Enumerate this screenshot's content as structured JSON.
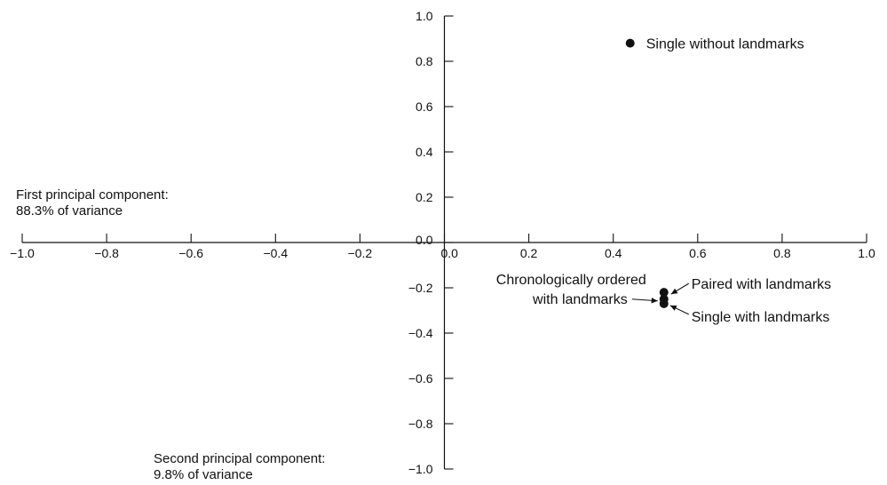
{
  "chart_data": {
    "type": "scatter",
    "title": "",
    "x_axis": {
      "title_lines": [
        "First principal component:",
        "88.3% of variance"
      ],
      "range": [
        -1.0,
        1.0
      ],
      "ticks": [
        -1.0,
        -0.8,
        -0.6,
        -0.4,
        -0.2,
        0.0,
        0.2,
        0.4,
        0.6,
        0.8,
        1.0
      ],
      "tick_labels": [
        "−1.0",
        "−0.8",
        "−0.6",
        "−0.4",
        "−0.2",
        "0.0",
        "0.2",
        "0.4",
        "0.6",
        "0.8",
        "1.0"
      ]
    },
    "y_axis": {
      "title_lines": [
        "Second principal component:",
        "9.8% of variance"
      ],
      "range": [
        -1.0,
        1.0
      ],
      "ticks": [
        1.0,
        0.8,
        0.6,
        0.4,
        0.2,
        0.0,
        -0.2,
        -0.4,
        -0.6,
        -0.8,
        -1.0
      ],
      "tick_labels": [
        "1.0",
        "0.8",
        "0.6",
        "0.4",
        "0.2",
        "0.0",
        "−0.2",
        "−0.4",
        "−0.6",
        "−0.8",
        "−1.0"
      ]
    },
    "points": [
      {
        "label_lines": [
          "Single without landmarks"
        ],
        "x": 0.44,
        "y": 0.88
      },
      {
        "label_lines": [
          "Paired with landmarks"
        ],
        "x": 0.52,
        "y": -0.22
      },
      {
        "label_lines": [
          "Chronologically ordered",
          "with landmarks"
        ],
        "x": 0.52,
        "y": -0.25
      },
      {
        "label_lines": [
          "Single with landmarks"
        ],
        "x": 0.52,
        "y": -0.27
      }
    ],
    "grid": false,
    "legend": "none"
  }
}
